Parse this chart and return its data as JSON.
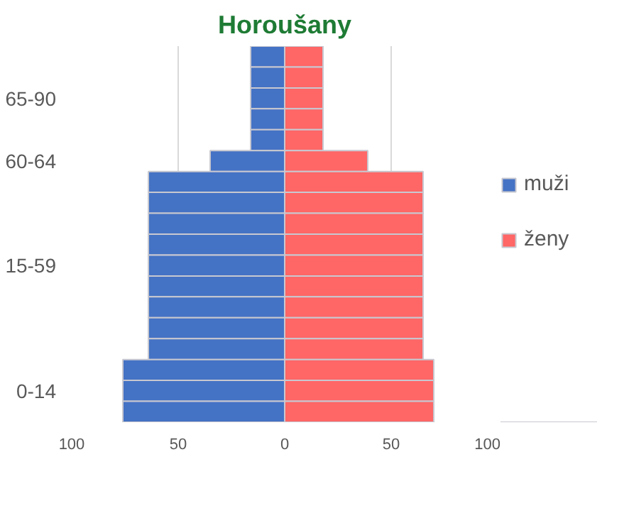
{
  "chart_data": {
    "type": "bar",
    "orientation": "horizontal",
    "stacked": true,
    "title": "Horoušany",
    "categories": [
      null,
      null,
      "65-90",
      null,
      null,
      "60-64",
      null,
      null,
      null,
      null,
      "15-59",
      null,
      null,
      null,
      null,
      null,
      "0-14",
      null
    ],
    "series": [
      {
        "name": "muži",
        "color": "#4472c4",
        "values": [
          -16,
          -16,
          -16,
          -16,
          -16,
          -35,
          -64,
          -64,
          -64,
          -64,
          -64,
          -64,
          -64,
          -64,
          -64,
          -76,
          -76,
          -76
        ]
      },
      {
        "name": "ženy",
        "color": "#ff6666",
        "values": [
          18,
          18,
          18,
          18,
          18,
          39,
          65,
          65,
          65,
          65,
          65,
          65,
          65,
          65,
          65,
          70,
          70,
          70
        ]
      }
    ],
    "xlim": [
      -100,
      100
    ],
    "xticks": [
      {
        "value": -100,
        "label": "100"
      },
      {
        "value": -50,
        "label": "50"
      },
      0,
      50,
      100
    ],
    "grid": "x",
    "legend": "right"
  }
}
